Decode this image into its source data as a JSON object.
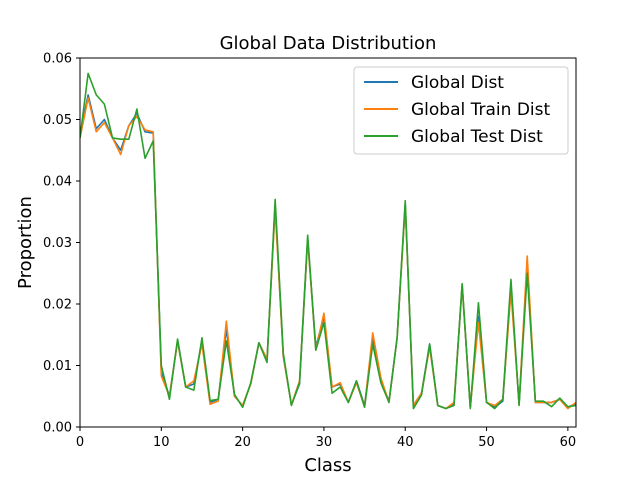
{
  "chart_data": {
    "type": "line",
    "title": "Global Data Distribution",
    "xlabel": "Class",
    "ylabel": "Proportion",
    "xlim": [
      0,
      61
    ],
    "ylim": [
      0,
      0.06
    ],
    "xticks": [
      0,
      10,
      20,
      30,
      40,
      50,
      60
    ],
    "xtick_labels": [
      "0",
      "10",
      "20",
      "30",
      "40",
      "50",
      "60"
    ],
    "yticks": [
      0,
      0.01,
      0.02,
      0.03,
      0.04,
      0.05,
      0.06
    ],
    "ytick_labels": [
      "0.00",
      "0.01",
      "0.02",
      "0.03",
      "0.04",
      "0.05",
      "0.06"
    ],
    "grid": false,
    "legend_position": "top-right",
    "x": [
      0,
      1,
      2,
      3,
      4,
      5,
      6,
      7,
      8,
      9,
      10,
      11,
      12,
      13,
      14,
      15,
      16,
      17,
      18,
      19,
      20,
      21,
      22,
      23,
      24,
      25,
      26,
      27,
      28,
      29,
      30,
      31,
      32,
      33,
      34,
      35,
      36,
      37,
      38,
      39,
      40,
      41,
      42,
      43,
      44,
      45,
      46,
      47,
      48,
      49,
      50,
      51,
      52,
      53,
      54,
      55,
      56,
      57,
      58,
      59,
      60,
      61
    ],
    "series": [
      {
        "name": "Global Dist",
        "color": "#1f77b4",
        "values": [
          0.0475,
          0.054,
          0.0485,
          0.05,
          0.047,
          0.045,
          0.049,
          0.051,
          0.048,
          0.0478,
          0.009,
          0.005,
          0.014,
          0.0065,
          0.007,
          0.014,
          0.004,
          0.0045,
          0.016,
          0.005,
          0.0035,
          0.007,
          0.0137,
          0.011,
          0.036,
          0.0115,
          0.0036,
          0.007,
          0.0305,
          0.013,
          0.018,
          0.0065,
          0.007,
          0.004,
          0.0075,
          0.0035,
          0.0145,
          0.0075,
          0.0042,
          0.0145,
          0.0362,
          0.0035,
          0.0055,
          0.0135,
          0.0035,
          0.003,
          0.0038,
          0.023,
          0.0032,
          0.018,
          0.004,
          0.0032,
          0.0042,
          0.023,
          0.0037,
          0.0265,
          0.004,
          0.004,
          0.004,
          0.0045,
          0.0032,
          0.0038
        ]
      },
      {
        "name": "Global Train Dist",
        "color": "#ff7f0e",
        "values": [
          0.047,
          0.0535,
          0.048,
          0.0495,
          0.047,
          0.0443,
          0.049,
          0.0505,
          0.0483,
          0.048,
          0.0083,
          0.005,
          0.014,
          0.0065,
          0.0075,
          0.0135,
          0.0037,
          0.0042,
          0.0172,
          0.005,
          0.0035,
          0.007,
          0.0137,
          0.011,
          0.0355,
          0.0115,
          0.0036,
          0.0075,
          0.0305,
          0.0125,
          0.0185,
          0.0065,
          0.0072,
          0.004,
          0.0072,
          0.0033,
          0.0153,
          0.008,
          0.004,
          0.0145,
          0.036,
          0.0035,
          0.0055,
          0.013,
          0.0035,
          0.003,
          0.004,
          0.023,
          0.0032,
          0.017,
          0.004,
          0.0035,
          0.0045,
          0.022,
          0.0037,
          0.0278,
          0.004,
          0.004,
          0.004,
          0.0045,
          0.003,
          0.004
        ]
      },
      {
        "name": "Global Test Dist",
        "color": "#2ca02c",
        "values": [
          0.047,
          0.0575,
          0.054,
          0.0525,
          0.047,
          0.0468,
          0.0468,
          0.0517,
          0.0437,
          0.0465,
          0.01,
          0.0045,
          0.0143,
          0.0065,
          0.006,
          0.0145,
          0.0043,
          0.0045,
          0.014,
          0.0053,
          0.0032,
          0.0072,
          0.0137,
          0.0105,
          0.037,
          0.012,
          0.0035,
          0.0072,
          0.0312,
          0.0125,
          0.017,
          0.0055,
          0.0065,
          0.004,
          0.0075,
          0.0032,
          0.0135,
          0.0072,
          0.004,
          0.0145,
          0.0368,
          0.003,
          0.0052,
          0.0135,
          0.0035,
          0.003,
          0.0035,
          0.0233,
          0.003,
          0.0202,
          0.004,
          0.003,
          0.0045,
          0.024,
          0.0035,
          0.025,
          0.0042,
          0.0042,
          0.0033,
          0.0047,
          0.0033,
          0.0035
        ]
      }
    ]
  }
}
